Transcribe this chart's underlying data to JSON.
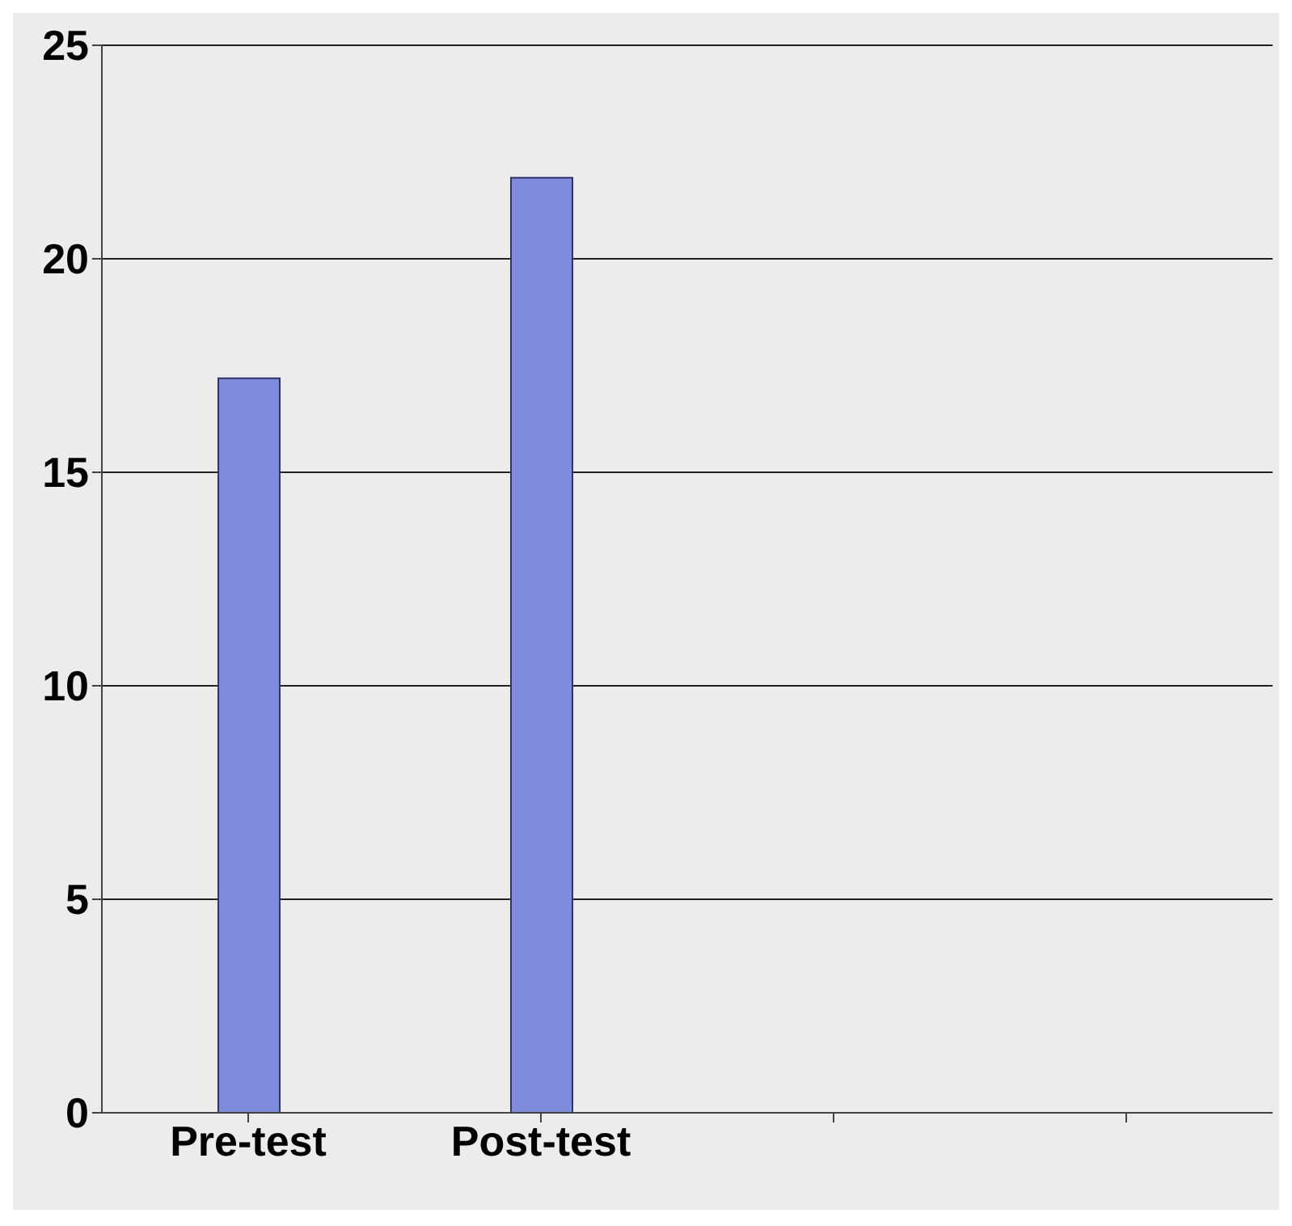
{
  "chart_data": {
    "type": "bar",
    "categories": [
      "Pre-test",
      "Post-test",
      null,
      null
    ],
    "values": [
      17.2,
      21.9,
      null,
      null
    ],
    "color": "#7f8bdb",
    "ylim": [
      0,
      25
    ],
    "yticks": [
      0,
      5,
      10,
      15,
      20,
      25
    ],
    "grid": "y"
  }
}
